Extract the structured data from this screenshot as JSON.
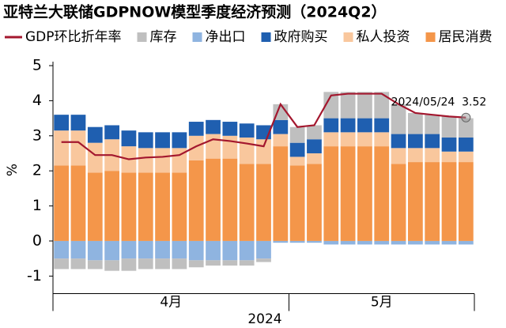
{
  "chart_data": {
    "type": "bar",
    "title": "亚特兰大联储GDPNOW模型季度经济预测（2024Q2）",
    "ylabel": "%",
    "xlabel": "2024",
    "categories": [
      null,
      null,
      null,
      null,
      null,
      null,
      null,
      null,
      null,
      null,
      null,
      null,
      null,
      null,
      null,
      null,
      null,
      null,
      null,
      null,
      null,
      null,
      null,
      null,
      null
    ],
    "x_groups": [
      {
        "label": "4月",
        "count": 14
      },
      {
        "label": "5月",
        "count": 11
      }
    ],
    "ylim": [
      -1.5,
      5.1
    ],
    "yticks": [
      -1,
      0,
      1,
      2,
      3,
      4,
      5
    ],
    "series": [
      {
        "name": "GDP环比折年率",
        "type": "line",
        "color": "#a3172e",
        "values": [
          2.82,
          2.82,
          2.45,
          2.45,
          2.33,
          2.38,
          2.4,
          2.45,
          2.7,
          2.9,
          2.85,
          2.78,
          2.7,
          3.9,
          3.25,
          3.3,
          4.15,
          4.2,
          4.2,
          4.2,
          3.9,
          3.65,
          3.6,
          3.55,
          3.52
        ]
      },
      {
        "name": "库存",
        "type": "bar",
        "color": "#bfbfbf",
        "values": [
          -0.3,
          -0.3,
          -0.25,
          -0.3,
          -0.35,
          -0.3,
          -0.3,
          -0.3,
          -0.2,
          -0.15,
          -0.15,
          -0.15,
          -0.1,
          0.45,
          0.45,
          0.4,
          0.75,
          0.75,
          0.75,
          0.75,
          0.85,
          0.6,
          0.55,
          0.6,
          0.55
        ]
      },
      {
        "name": "净出口",
        "type": "bar",
        "color": "#8fb4e0",
        "values": [
          -0.5,
          -0.5,
          -0.55,
          -0.55,
          -0.5,
          -0.5,
          -0.5,
          -0.5,
          -0.55,
          -0.55,
          -0.55,
          -0.55,
          -0.5,
          -0.05,
          -0.05,
          -0.05,
          -0.1,
          -0.1,
          -0.1,
          -0.1,
          -0.1,
          -0.1,
          -0.1,
          -0.1,
          -0.1
        ]
      },
      {
        "name": "政府购买",
        "type": "bar",
        "color": "#1f5fb0",
        "values": [
          0.45,
          0.45,
          0.45,
          0.4,
          0.45,
          0.45,
          0.45,
          0.45,
          0.4,
          0.4,
          0.4,
          0.4,
          0.4,
          0.4,
          0.4,
          0.4,
          0.4,
          0.4,
          0.4,
          0.4,
          0.4,
          0.4,
          0.4,
          0.4,
          0.4
        ]
      },
      {
        "name": "私人投资",
        "type": "bar",
        "color": "#f9c79d",
        "values": [
          1.0,
          1.0,
          0.85,
          0.9,
          0.75,
          0.7,
          0.7,
          0.7,
          0.7,
          0.7,
          0.65,
          0.75,
          0.7,
          0.35,
          0.25,
          0.3,
          0.4,
          0.4,
          0.4,
          0.4,
          0.45,
          0.4,
          0.4,
          0.3,
          0.3
        ]
      },
      {
        "name": "居民消费",
        "type": "bar",
        "color": "#f4964a",
        "values": [
          2.15,
          2.15,
          1.95,
          2.0,
          1.95,
          1.95,
          1.95,
          1.95,
          2.3,
          2.35,
          2.35,
          2.2,
          2.2,
          2.7,
          2.15,
          2.2,
          2.7,
          2.7,
          2.7,
          2.7,
          2.2,
          2.25,
          2.25,
          2.25,
          2.25
        ]
      }
    ],
    "annotation": "2024/05/24  3.52"
  }
}
